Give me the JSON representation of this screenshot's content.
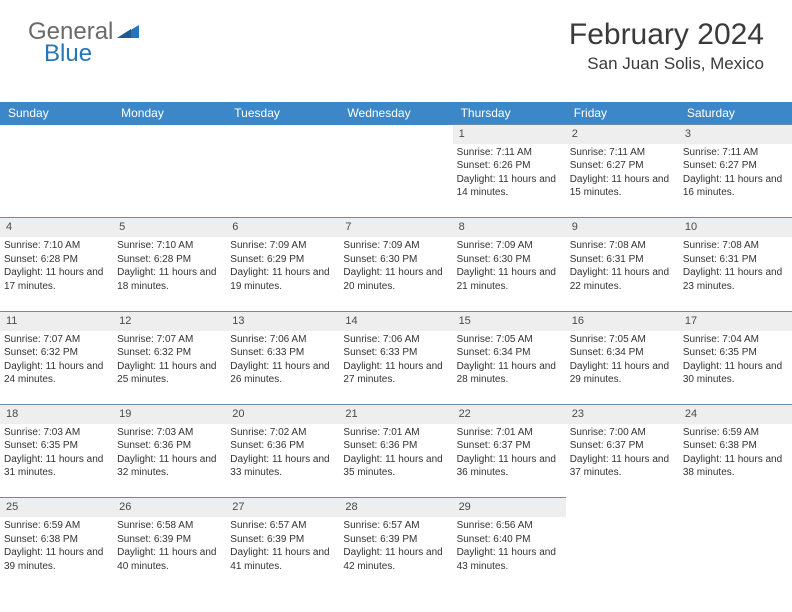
{
  "logo": {
    "general": "General",
    "blue": "Blue"
  },
  "title": "February 2024",
  "location": "San Juan Solis, Mexico",
  "dayHeaders": [
    "Sunday",
    "Monday",
    "Tuesday",
    "Wednesday",
    "Thursday",
    "Friday",
    "Saturday"
  ],
  "colors": {
    "headerBg": "#3c87c7",
    "headerText": "#ffffff",
    "dayNumBg": "#eeeeee",
    "cellBorder": "#6d8aa8",
    "logoGray": "#6a6a6a",
    "logoBlue": "#2874b8",
    "textDark": "#3a3a3a"
  },
  "startOffset": 4,
  "daysInMonth": 29,
  "days": {
    "1": {
      "sunrise": "7:11 AM",
      "sunset": "6:26 PM",
      "daylight": "11 hours and 14 minutes."
    },
    "2": {
      "sunrise": "7:11 AM",
      "sunset": "6:27 PM",
      "daylight": "11 hours and 15 minutes."
    },
    "3": {
      "sunrise": "7:11 AM",
      "sunset": "6:27 PM",
      "daylight": "11 hours and 16 minutes."
    },
    "4": {
      "sunrise": "7:10 AM",
      "sunset": "6:28 PM",
      "daylight": "11 hours and 17 minutes."
    },
    "5": {
      "sunrise": "7:10 AM",
      "sunset": "6:28 PM",
      "daylight": "11 hours and 18 minutes."
    },
    "6": {
      "sunrise": "7:09 AM",
      "sunset": "6:29 PM",
      "daylight": "11 hours and 19 minutes."
    },
    "7": {
      "sunrise": "7:09 AM",
      "sunset": "6:30 PM",
      "daylight": "11 hours and 20 minutes."
    },
    "8": {
      "sunrise": "7:09 AM",
      "sunset": "6:30 PM",
      "daylight": "11 hours and 21 minutes."
    },
    "9": {
      "sunrise": "7:08 AM",
      "sunset": "6:31 PM",
      "daylight": "11 hours and 22 minutes."
    },
    "10": {
      "sunrise": "7:08 AM",
      "sunset": "6:31 PM",
      "daylight": "11 hours and 23 minutes."
    },
    "11": {
      "sunrise": "7:07 AM",
      "sunset": "6:32 PM",
      "daylight": "11 hours and 24 minutes."
    },
    "12": {
      "sunrise": "7:07 AM",
      "sunset": "6:32 PM",
      "daylight": "11 hours and 25 minutes."
    },
    "13": {
      "sunrise": "7:06 AM",
      "sunset": "6:33 PM",
      "daylight": "11 hours and 26 minutes."
    },
    "14": {
      "sunrise": "7:06 AM",
      "sunset": "6:33 PM",
      "daylight": "11 hours and 27 minutes."
    },
    "15": {
      "sunrise": "7:05 AM",
      "sunset": "6:34 PM",
      "daylight": "11 hours and 28 minutes."
    },
    "16": {
      "sunrise": "7:05 AM",
      "sunset": "6:34 PM",
      "daylight": "11 hours and 29 minutes."
    },
    "17": {
      "sunrise": "7:04 AM",
      "sunset": "6:35 PM",
      "daylight": "11 hours and 30 minutes."
    },
    "18": {
      "sunrise": "7:03 AM",
      "sunset": "6:35 PM",
      "daylight": "11 hours and 31 minutes."
    },
    "19": {
      "sunrise": "7:03 AM",
      "sunset": "6:36 PM",
      "daylight": "11 hours and 32 minutes."
    },
    "20": {
      "sunrise": "7:02 AM",
      "sunset": "6:36 PM",
      "daylight": "11 hours and 33 minutes."
    },
    "21": {
      "sunrise": "7:01 AM",
      "sunset": "6:36 PM",
      "daylight": "11 hours and 35 minutes."
    },
    "22": {
      "sunrise": "7:01 AM",
      "sunset": "6:37 PM",
      "daylight": "11 hours and 36 minutes."
    },
    "23": {
      "sunrise": "7:00 AM",
      "sunset": "6:37 PM",
      "daylight": "11 hours and 37 minutes."
    },
    "24": {
      "sunrise": "6:59 AM",
      "sunset": "6:38 PM",
      "daylight": "11 hours and 38 minutes."
    },
    "25": {
      "sunrise": "6:59 AM",
      "sunset": "6:38 PM",
      "daylight": "11 hours and 39 minutes."
    },
    "26": {
      "sunrise": "6:58 AM",
      "sunset": "6:39 PM",
      "daylight": "11 hours and 40 minutes."
    },
    "27": {
      "sunrise": "6:57 AM",
      "sunset": "6:39 PM",
      "daylight": "11 hours and 41 minutes."
    },
    "28": {
      "sunrise": "6:57 AM",
      "sunset": "6:39 PM",
      "daylight": "11 hours and 42 minutes."
    },
    "29": {
      "sunrise": "6:56 AM",
      "sunset": "6:40 PM",
      "daylight": "11 hours and 43 minutes."
    }
  }
}
